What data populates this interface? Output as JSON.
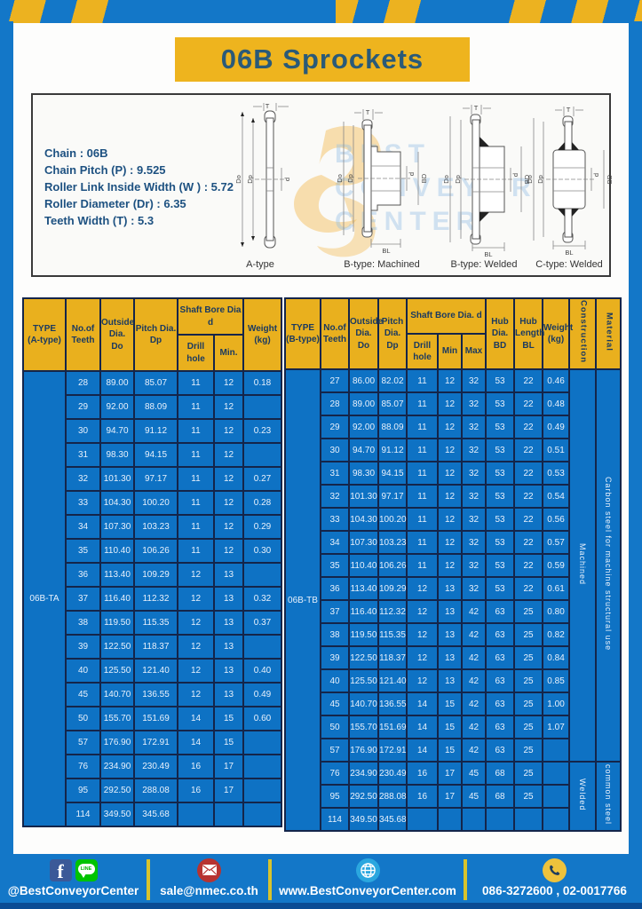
{
  "header": {
    "title": "06B Sprockets"
  },
  "specs": {
    "lines": [
      "Chain  : 06B",
      "Chain Pitch (P)  :  9.525",
      "Roller Link Inside Width (W )  :  5.72",
      "Roller Diameter (Dr)  : 6.35",
      "Teeth Width (T)  :  5.3"
    ]
  },
  "watermark": {
    "lines": [
      "BEST",
      "CONVEYOR",
      "CENTER"
    ]
  },
  "diagrams": {
    "captions": [
      "A-type",
      "B-type: Machined",
      "B-type: Welded",
      "C-type: Welded"
    ],
    "dims": {
      "t": "T",
      "do": "Do",
      "dp": "Dp",
      "d": "d",
      "bd": "BD",
      "bl": "BL"
    }
  },
  "table_a": {
    "type_label": "06B-TA",
    "headers": {
      "type": "TYPE\n(A-type)",
      "teeth": "No.of\nTeeth",
      "outside": "Outside\nDia.\nDo",
      "pitch": "Pitch Dia.\nDp",
      "shaft": "Shaft Bore Dia d",
      "drill": "Drill hole",
      "min": "Min.",
      "weight": "Weight\n(kg)"
    },
    "rows": [
      [
        "28",
        "89.00",
        "85.07",
        "11",
        "12",
        "0.18"
      ],
      [
        "29",
        "92.00",
        "88.09",
        "11",
        "12",
        ""
      ],
      [
        "30",
        "94.70",
        "91.12",
        "11",
        "12",
        "0.23"
      ],
      [
        "31",
        "98.30",
        "94.15",
        "11",
        "12",
        ""
      ],
      [
        "32",
        "101.30",
        "97.17",
        "11",
        "12",
        "0.27"
      ],
      [
        "33",
        "104.30",
        "100.20",
        "11",
        "12",
        "0.28"
      ],
      [
        "34",
        "107.30",
        "103.23",
        "11",
        "12",
        "0.29"
      ],
      [
        "35",
        "110.40",
        "106.26",
        "11",
        "12",
        "0.30"
      ],
      [
        "36",
        "113.40",
        "109.29",
        "12",
        "13",
        ""
      ],
      [
        "37",
        "116.40",
        "112.32",
        "12",
        "13",
        "0.32"
      ],
      [
        "38",
        "119.50",
        "115.35",
        "12",
        "13",
        "0.37"
      ],
      [
        "39",
        "122.50",
        "118.37",
        "12",
        "13",
        ""
      ],
      [
        "40",
        "125.50",
        "121.40",
        "12",
        "13",
        "0.40"
      ],
      [
        "45",
        "140.70",
        "136.55",
        "12",
        "13",
        "0.49"
      ],
      [
        "50",
        "155.70",
        "151.69",
        "14",
        "15",
        "0.60"
      ],
      [
        "57",
        "176.90",
        "172.91",
        "14",
        "15",
        ""
      ],
      [
        "76",
        "234.90",
        "230.49",
        "16",
        "17",
        ""
      ],
      [
        "95",
        "292.50",
        "288.08",
        "16",
        "17",
        ""
      ],
      [
        "114",
        "349.50",
        "345.68",
        "",
        "",
        ""
      ]
    ]
  },
  "table_b": {
    "type_label": "06B-TB",
    "headers": {
      "type": "TYPE\n(B-type)",
      "teeth": "No.of\nTeeth",
      "outside": "Outside\nDia.\nDo",
      "pitch": "Pitch\nDia.\nDp",
      "shaft": "Shaft Bore Dia.  d",
      "drill": "Drill hole",
      "min": "Min",
      "max": "Max",
      "hub_dia": "Hub\nDia.\nBD",
      "hub_len": "Hub\nLength\nBL",
      "weight": "Weight\n(kg)",
      "construction": "Construction",
      "material": "Material"
    },
    "rows": [
      [
        "27",
        "86.00",
        "82.02",
        "11",
        "12",
        "32",
        "53",
        "22",
        "0.46"
      ],
      [
        "28",
        "89.00",
        "85.07",
        "11",
        "12",
        "32",
        "53",
        "22",
        "0.48"
      ],
      [
        "29",
        "92.00",
        "88.09",
        "11",
        "12",
        "32",
        "53",
        "22",
        "0.49"
      ],
      [
        "30",
        "94.70",
        "91.12",
        "11",
        "12",
        "32",
        "53",
        "22",
        "0.51"
      ],
      [
        "31",
        "98.30",
        "94.15",
        "11",
        "12",
        "32",
        "53",
        "22",
        "0.53"
      ],
      [
        "32",
        "101.30",
        "97.17",
        "11",
        "12",
        "32",
        "53",
        "22",
        "0.54"
      ],
      [
        "33",
        "104.30",
        "100.20",
        "11",
        "12",
        "32",
        "53",
        "22",
        "0.56"
      ],
      [
        "34",
        "107.30",
        "103.23",
        "11",
        "12",
        "32",
        "53",
        "22",
        "0.57"
      ],
      [
        "35",
        "110.40",
        "106.26",
        "11",
        "12",
        "32",
        "53",
        "22",
        "0.59"
      ],
      [
        "36",
        "113.40",
        "109.29",
        "12",
        "13",
        "32",
        "53",
        "22",
        "0.61"
      ],
      [
        "37",
        "116.40",
        "112.32",
        "12",
        "13",
        "42",
        "63",
        "25",
        "0.80"
      ],
      [
        "38",
        "119.50",
        "115.35",
        "12",
        "13",
        "42",
        "63",
        "25",
        "0.82"
      ],
      [
        "39",
        "122.50",
        "118.37",
        "12",
        "13",
        "42",
        "63",
        "25",
        "0.84"
      ],
      [
        "40",
        "125.50",
        "121.40",
        "12",
        "13",
        "42",
        "63",
        "25",
        "0.85"
      ],
      [
        "45",
        "140.70",
        "136.55",
        "14",
        "15",
        "42",
        "63",
        "25",
        "1.00"
      ],
      [
        "50",
        "155.70",
        "151.69",
        "14",
        "15",
        "42",
        "63",
        "25",
        "1.07"
      ],
      [
        "57",
        "176.90",
        "172.91",
        "14",
        "15",
        "42",
        "63",
        "25",
        ""
      ],
      [
        "76",
        "234.90",
        "230.49",
        "16",
        "17",
        "45",
        "68",
        "25",
        ""
      ],
      [
        "95",
        "292.50",
        "288.08",
        "16",
        "17",
        "45",
        "68",
        "25",
        ""
      ],
      [
        "114",
        "349.50",
        "345.68",
        "",
        "",
        "",
        "",
        "",
        ""
      ]
    ],
    "groups": [
      {
        "start": 0,
        "span": 17,
        "construction": "Machined",
        "material": "Carbon  steel  for  machine  structural  use"
      },
      {
        "start": 17,
        "span": 3,
        "construction": "Welded",
        "material": "common steel"
      }
    ]
  },
  "footer": {
    "facebook_glyph": "f",
    "line_label": "LINE",
    "sections": [
      {
        "text": "@BestConveyorCenter"
      },
      {
        "text": "sale@nmec.co.th"
      },
      {
        "text": "www.BestConveyorCenter.com"
      },
      {
        "text": "086-3272600 , 02-0017766"
      }
    ]
  }
}
